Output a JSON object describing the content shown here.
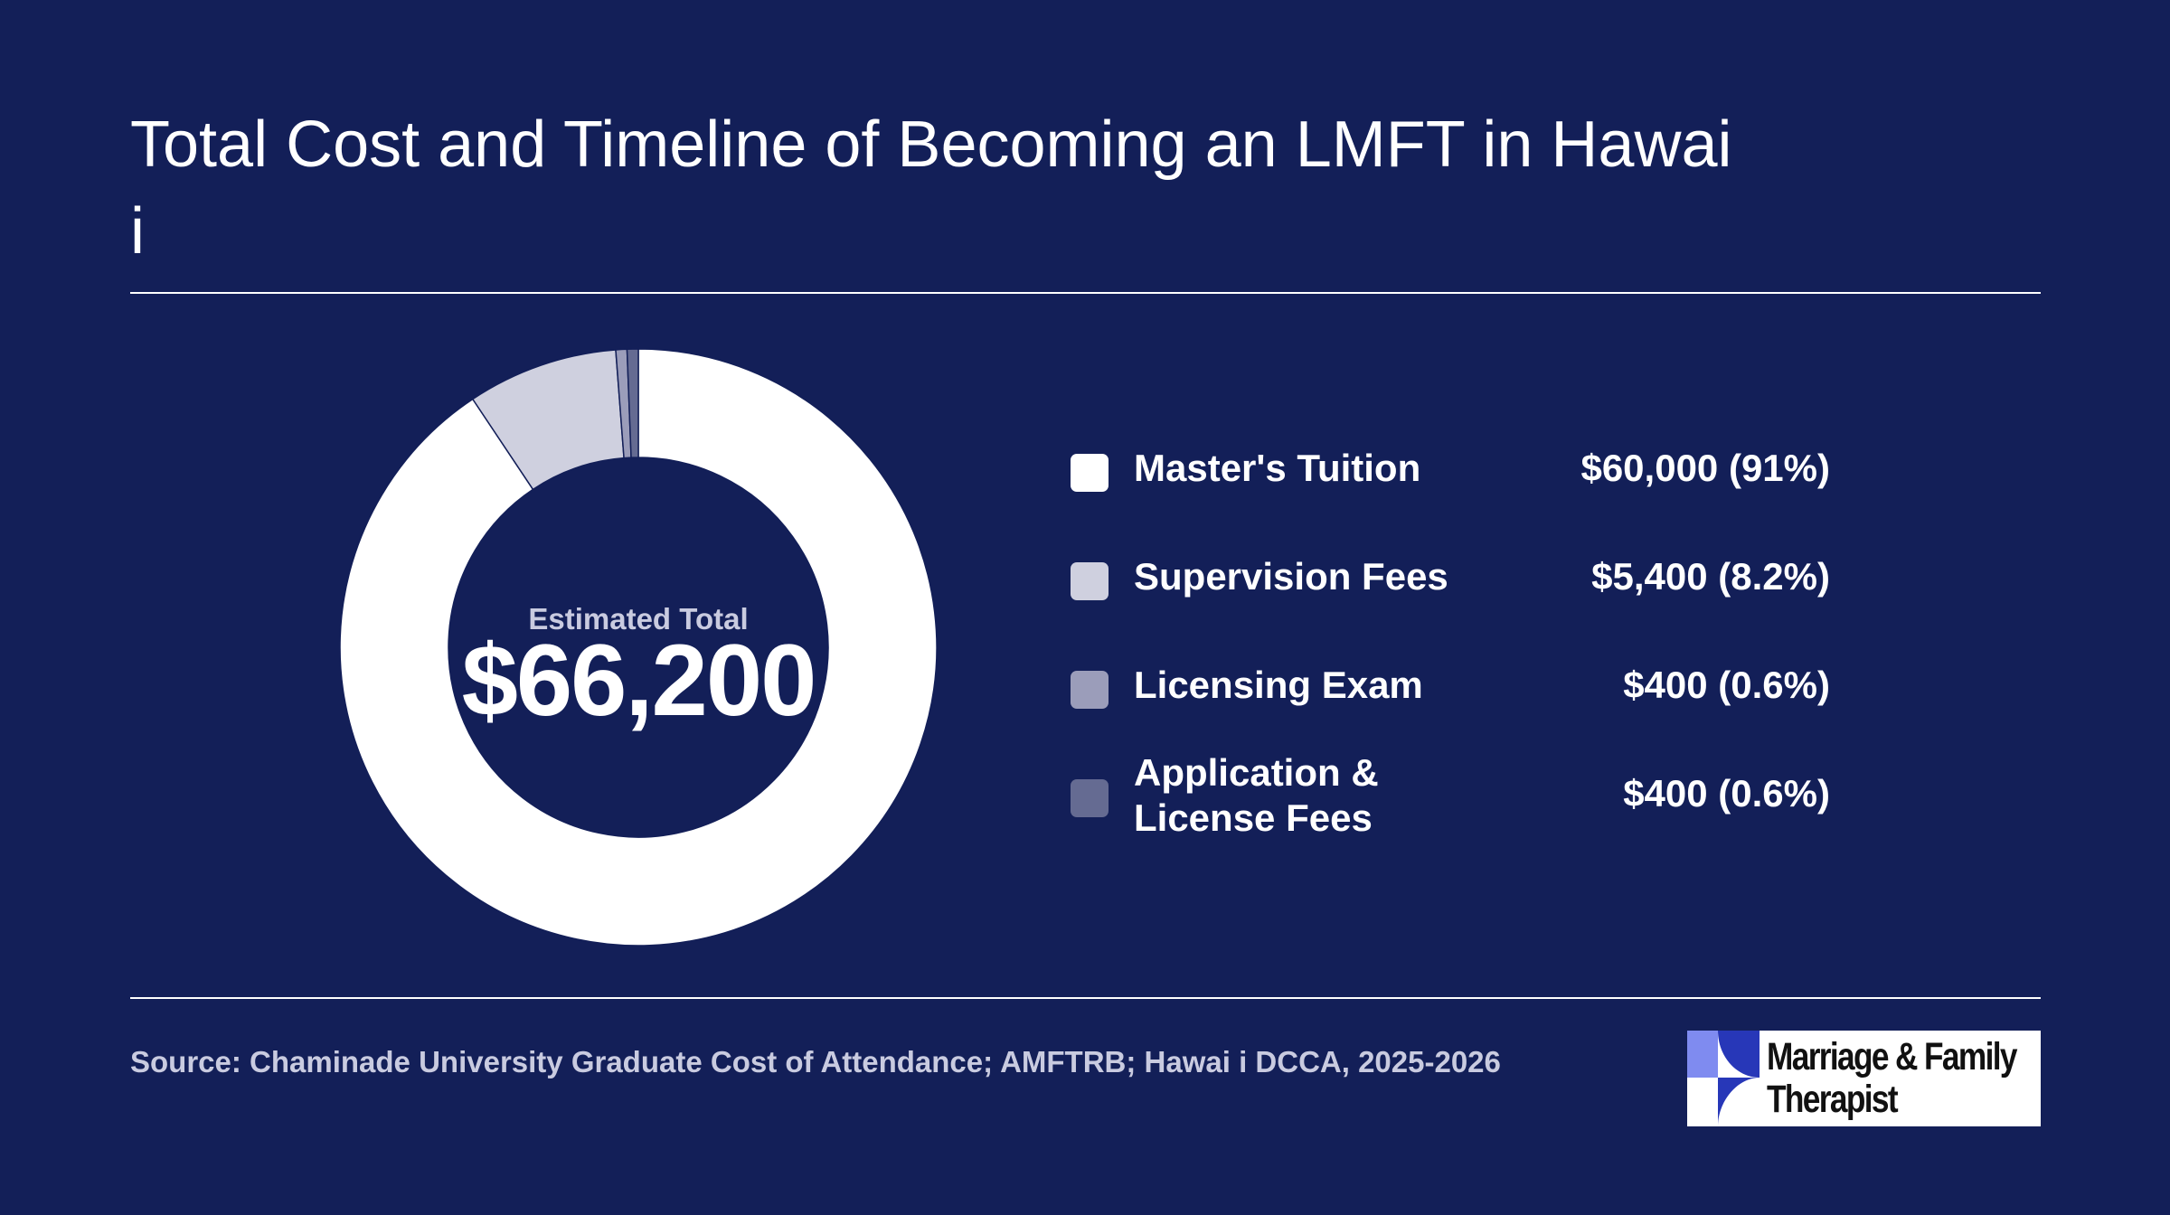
{
  "page": {
    "title": "Total Cost and Timeline of Becoming an LMFT in Hawai i",
    "source": "Source: Chaminade University Graduate Cost of Attendance; AMFTRB; Hawai i DCCA, 2025-2026",
    "logo": {
      "line1": "Marriage & Family",
      "line2": "Therapist"
    }
  },
  "colors": {
    "background": "#131f58",
    "text": "#ffffff",
    "muted_text": "#c9cbe0"
  },
  "chart_data": {
    "type": "pie",
    "center_label": "Estimated Total",
    "center_value": "$66,200",
    "series": [
      {
        "name": "Master's Tuition",
        "value": 60000,
        "value_label": "$60,000 (91%)",
        "color": "#ffffff"
      },
      {
        "name": "Supervision Fees",
        "value": 5400,
        "value_label": "$5,400 (8.2%)",
        "color": "#cfd0df"
      },
      {
        "name": "Licensing Exam",
        "value": 400,
        "value_label": "$400 (0.6%)",
        "color": "#9b9dba"
      },
      {
        "name": "Application & License Fees",
        "value": 400,
        "value_label": "$400 (0.6%)",
        "color": "#656b92"
      }
    ],
    "legend_position": "right"
  }
}
